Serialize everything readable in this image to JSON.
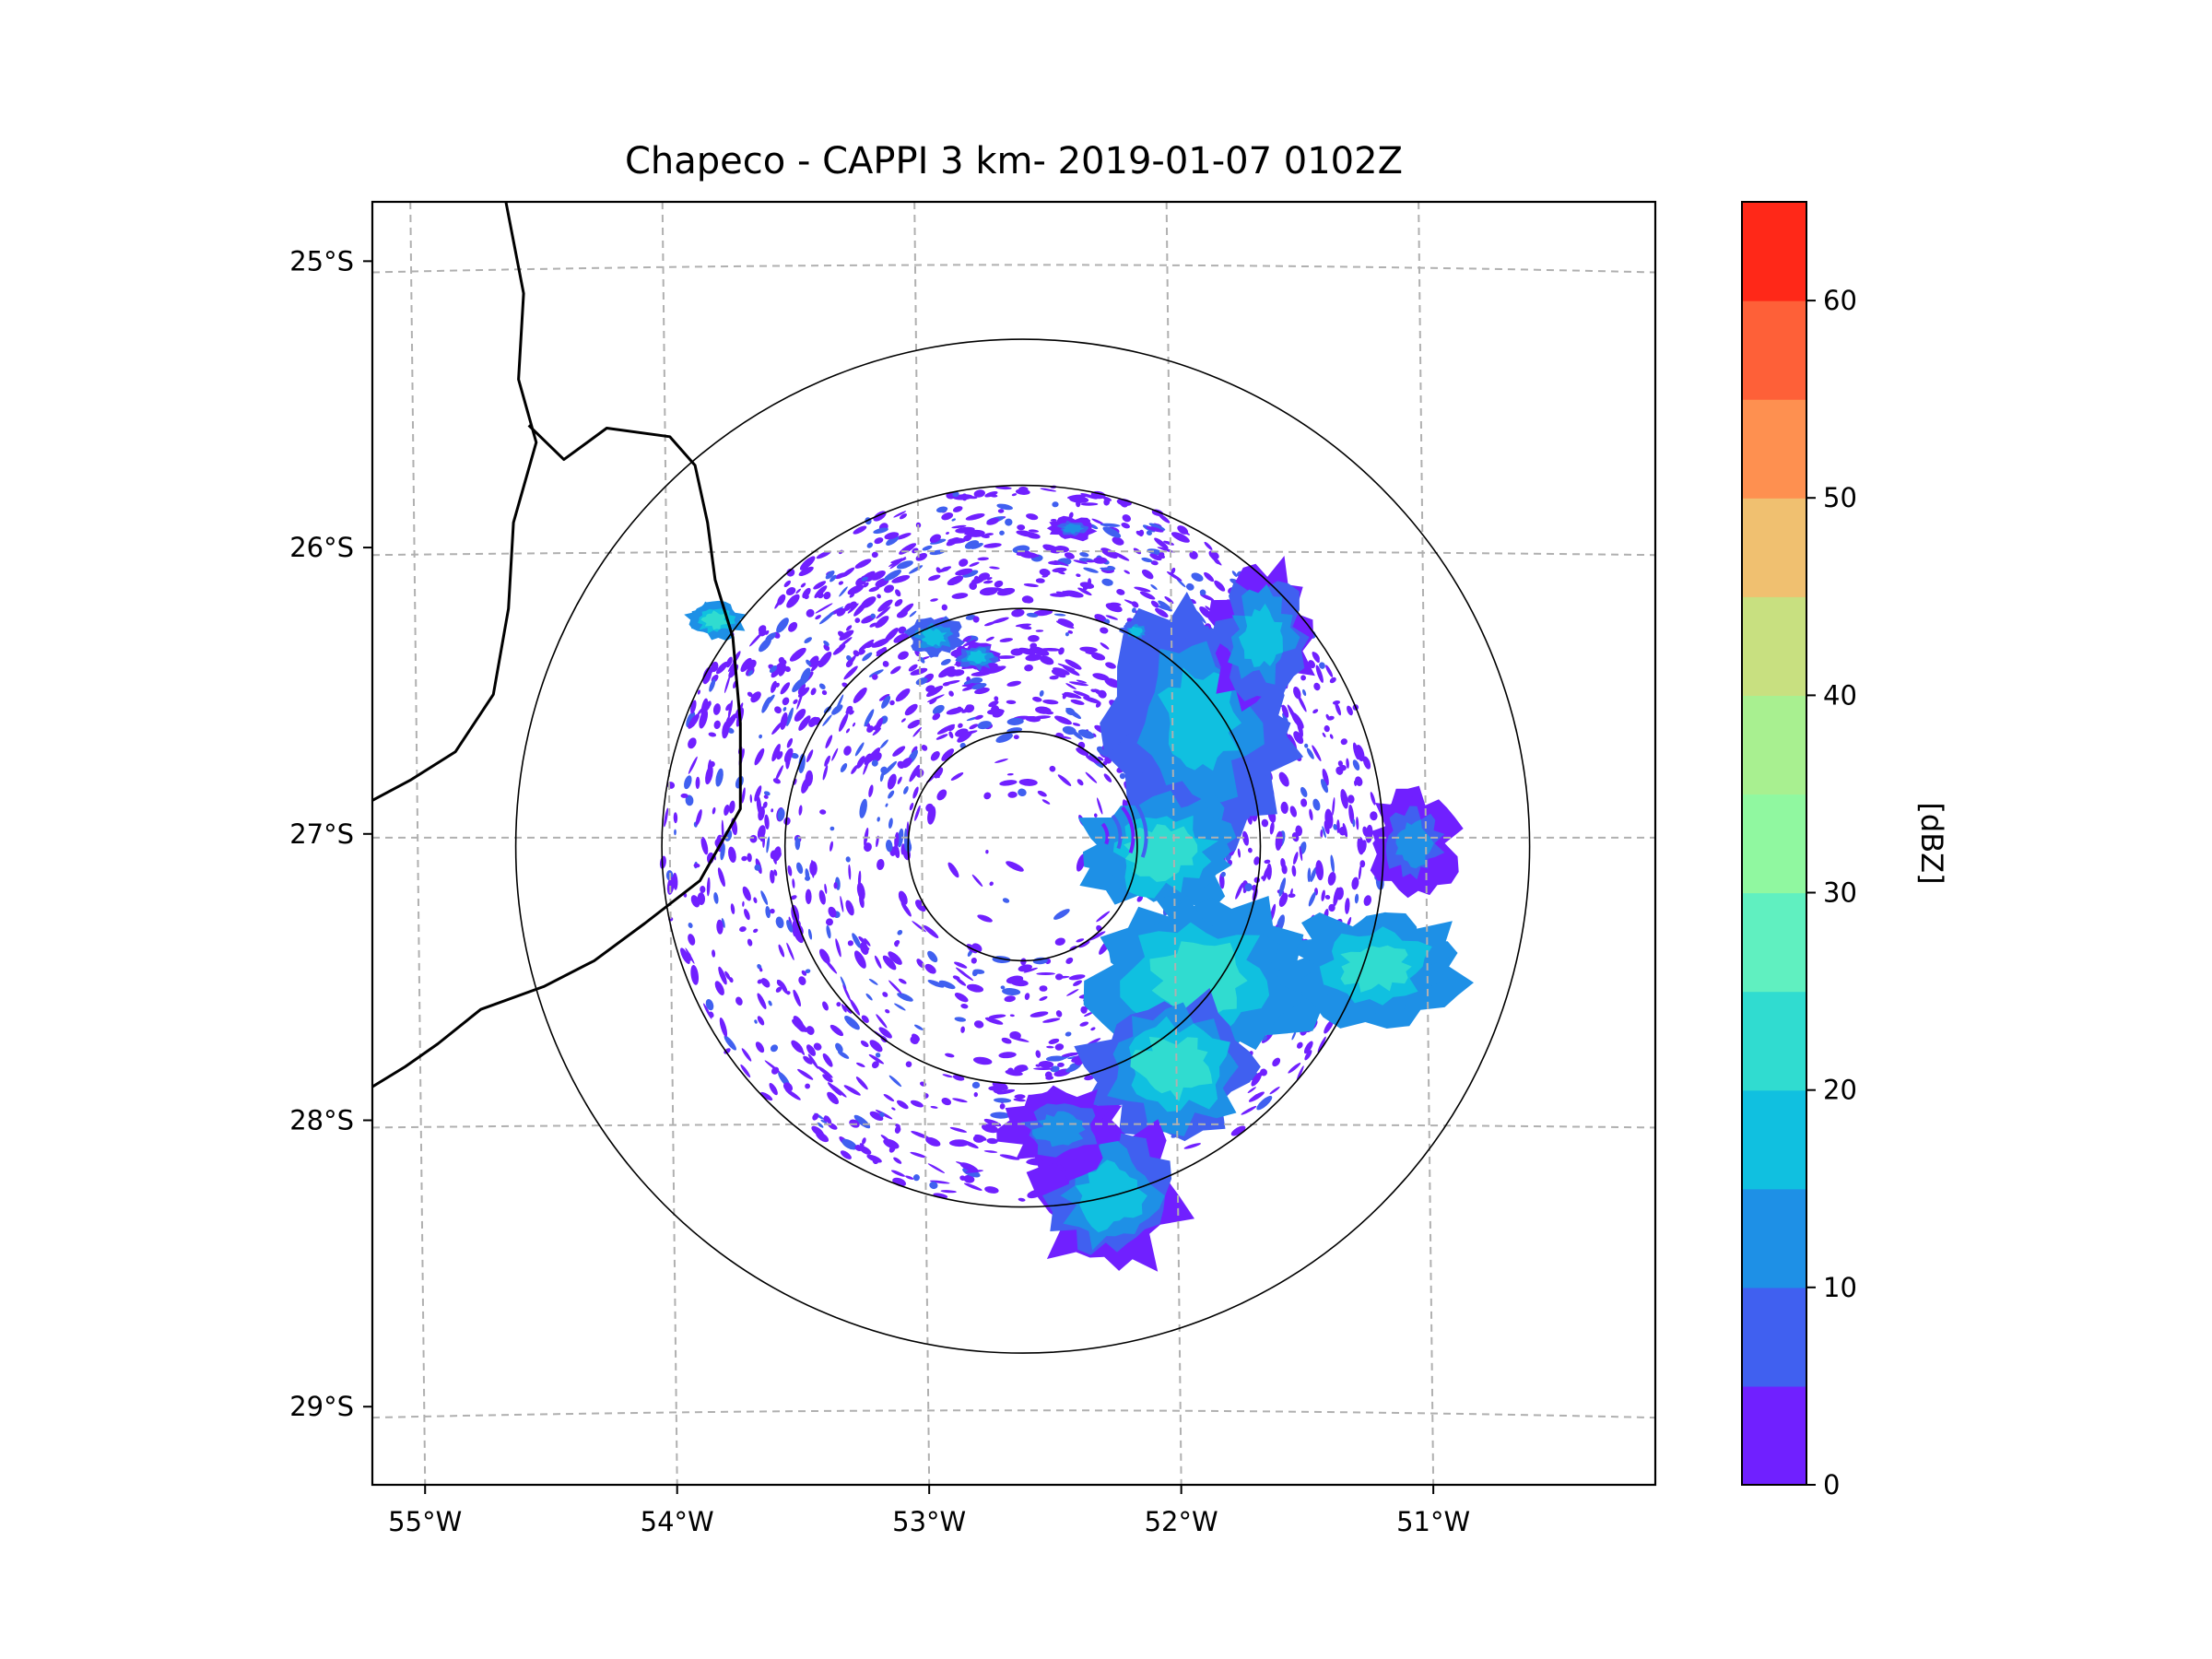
{
  "chart_data": {
    "type": "map",
    "title": "Chapeco - CAPPI 3 km- 2019-01-07 0102Z",
    "radar_center": {
      "lon": -52.6,
      "lat": -27.03
    },
    "extent": {
      "lon": [
        -55.18,
        -50.09
      ],
      "lat": [
        -29.26,
        -24.78
      ]
    },
    "lon_ticks": [
      {
        "value": -55,
        "label": "55°W"
      },
      {
        "value": -54,
        "label": "54°W"
      },
      {
        "value": -53,
        "label": "53°W"
      },
      {
        "value": -52,
        "label": "52°W"
      },
      {
        "value": -51,
        "label": "51°W"
      }
    ],
    "lat_ticks": [
      {
        "value": -25,
        "label": "25°S"
      },
      {
        "value": -26,
        "label": "26°S"
      },
      {
        "value": -27,
        "label": "27°S"
      },
      {
        "value": -28,
        "label": "28°S"
      },
      {
        "value": -29,
        "label": "29°S"
      }
    ],
    "range_rings_deg_lat": [
      0.4,
      0.83,
      1.26,
      1.77
    ],
    "gridlines": true,
    "colorbar": {
      "label": "[dBZ]",
      "min": 0,
      "max": 65,
      "step": 5,
      "ticks": [
        0,
        10,
        20,
        30,
        40,
        50,
        60
      ],
      "tick_labels": [
        "0",
        "10",
        "20",
        "30",
        "40",
        "50",
        "60"
      ],
      "colors": [
        "#7020ff",
        "#4060f0",
        "#1e90e6",
        "#10c0e0",
        "#30dcd0",
        "#60f0c0",
        "#90f8a0",
        "#a8f090",
        "#c8e080",
        "#f0c070",
        "#fe9050",
        "#fe6038",
        "#ff2818"
      ]
    },
    "cells": [
      {
        "lon": -51.9,
        "lat": -26.6,
        "dbz": 18,
        "rx": 0.32,
        "ry": 0.42
      },
      {
        "lon": -51.65,
        "lat": -26.3,
        "dbz": 15,
        "rx": 0.18,
        "ry": 0.25
      },
      {
        "lon": -52.05,
        "lat": -27.05,
        "dbz": 22,
        "rx": 0.28,
        "ry": 0.22
      },
      {
        "lon": -51.9,
        "lat": -27.5,
        "dbz": 24,
        "rx": 0.38,
        "ry": 0.32
      },
      {
        "lon": -52.0,
        "lat": -27.8,
        "dbz": 20,
        "rx": 0.3,
        "ry": 0.25
      },
      {
        "lon": -51.2,
        "lat": -27.45,
        "dbz": 22,
        "rx": 0.3,
        "ry": 0.2
      },
      {
        "lon": -51.05,
        "lat": -27.02,
        "dbz": 12,
        "rx": 0.15,
        "ry": 0.18
      },
      {
        "lon": -52.25,
        "lat": -28.25,
        "dbz": 16,
        "rx": 0.25,
        "ry": 0.28
      },
      {
        "lon": -52.45,
        "lat": -28.02,
        "dbz": 14,
        "rx": 0.2,
        "ry": 0.15
      },
      {
        "lon": -52.95,
        "lat": -26.3,
        "dbz": 18,
        "rx": 0.1,
        "ry": 0.07
      },
      {
        "lon": -52.78,
        "lat": -26.37,
        "dbz": 15,
        "rx": 0.08,
        "ry": 0.05
      },
      {
        "lon": -53.82,
        "lat": -26.24,
        "dbz": 22,
        "rx": 0.1,
        "ry": 0.07
      },
      {
        "lon": -52.4,
        "lat": -25.92,
        "dbz": 12,
        "rx": 0.08,
        "ry": 0.04
      },
      {
        "lon": -52.15,
        "lat": -26.28,
        "dbz": 18,
        "rx": 0.05,
        "ry": 0.04
      }
    ],
    "borders": [
      [
        [
          -54.65,
          -24.78
        ],
        [
          -54.58,
          -25.1
        ],
        [
          -54.6,
          -25.4
        ],
        [
          -54.53,
          -25.62
        ],
        [
          -54.62,
          -25.9
        ],
        [
          -54.64,
          -26.2
        ],
        [
          -54.7,
          -26.5
        ],
        [
          -54.85,
          -26.7
        ],
        [
          -55.03,
          -26.8
        ],
        [
          -55.18,
          -26.87
        ]
      ],
      [
        [
          -54.56,
          -25.56
        ],
        [
          -54.42,
          -25.68
        ],
        [
          -54.25,
          -25.57
        ],
        [
          -54.0,
          -25.6
        ],
        [
          -53.9,
          -25.7
        ],
        [
          -53.85,
          -25.9
        ],
        [
          -53.82,
          -26.1
        ],
        [
          -53.75,
          -26.3
        ],
        [
          -53.72,
          -26.6
        ],
        [
          -53.72,
          -26.9
        ],
        [
          -53.88,
          -27.15
        ],
        [
          -54.1,
          -27.3
        ],
        [
          -54.3,
          -27.43
        ],
        [
          -54.5,
          -27.52
        ],
        [
          -54.75,
          -27.6
        ],
        [
          -54.92,
          -27.72
        ],
        [
          -55.05,
          -27.8
        ],
        [
          -55.18,
          -27.87
        ]
      ]
    ]
  }
}
